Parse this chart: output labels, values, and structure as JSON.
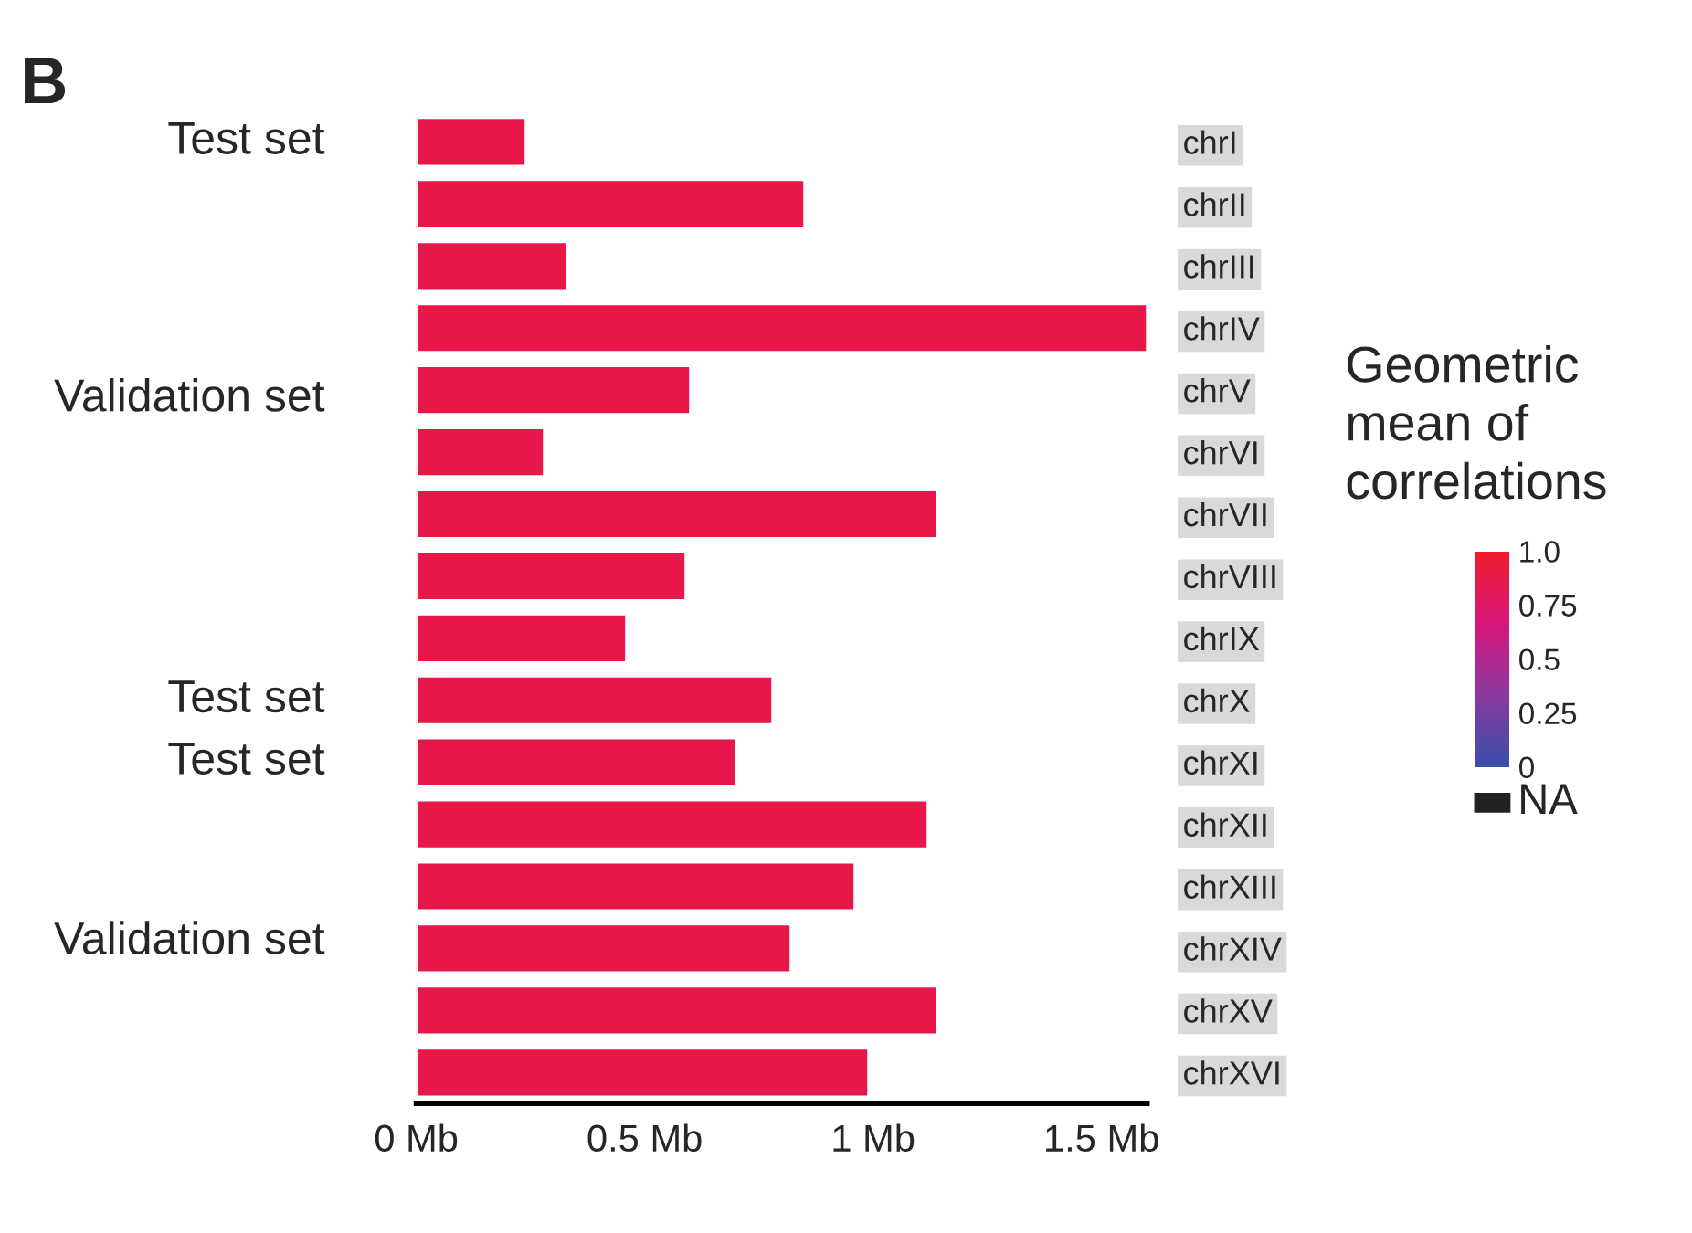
{
  "chart_data": {
    "type": "bar",
    "orientation": "horizontal",
    "categories": [
      "chrI",
      "chrII",
      "chrIII",
      "chrIV",
      "chrV",
      "chrVI",
      "chrVII",
      "chrVIII",
      "chrIX",
      "chrX",
      "chrXI",
      "chrXII",
      "chrXIII",
      "chrXIV",
      "chrXV",
      "chrXVI"
    ],
    "values": [
      0.24,
      0.85,
      0.33,
      1.6,
      0.6,
      0.28,
      1.14,
      0.59,
      0.46,
      0.78,
      0.7,
      1.12,
      0.96,
      0.82,
      1.14,
      0.99
    ],
    "color": "#e8174a",
    "xlim": [
      0,
      1.6
    ],
    "xticks": [
      {
        "value": 0,
        "label": "0 Mb"
      },
      {
        "value": 0.5,
        "label": "0.5 Mb"
      },
      {
        "value": 1,
        "label": "1 Mb"
      },
      {
        "value": 1.5,
        "label": "1.5 Mb"
      }
    ],
    "clabel": "Geometric\nmean of\ncorrelations",
    "clim": [
      0,
      1
    ],
    "cticks": [
      0,
      0.25,
      0.5,
      0.75,
      {
        "value": 1,
        "label": "1.0"
      }
    ],
    "grid": false,
    "annotations": [
      "B",
      "Test set",
      "Validation set",
      "Test set",
      "Test set",
      "Validation set",
      "NA"
    ]
  }
}
